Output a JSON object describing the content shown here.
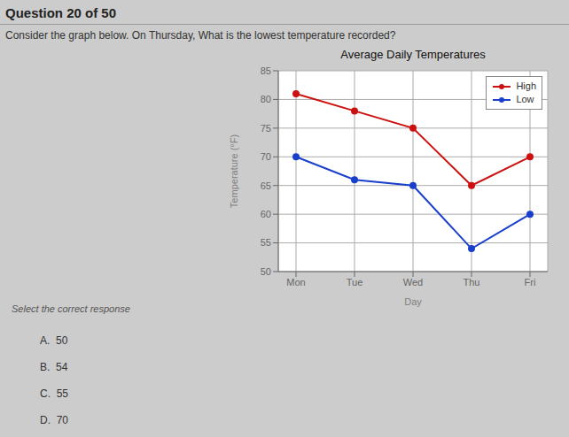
{
  "chart_data": {
    "type": "line",
    "title": "Average Daily Temperatures",
    "xlabel": "Day",
    "ylabel": "Temperature (°F)",
    "categories": [
      "Mon",
      "Tue",
      "Wed",
      "Thu",
      "Fri"
    ],
    "series": [
      {
        "name": "High",
        "color": "#cc1111",
        "values": [
          81,
          78,
          75,
          65,
          70
        ]
      },
      {
        "name": "Low",
        "color": "#1a3fcc",
        "values": [
          70,
          66,
          65,
          54,
          60
        ]
      }
    ],
    "marker": "circle",
    "ylim": [
      50,
      85
    ],
    "yticks": [
      50,
      55,
      60,
      65,
      70,
      75,
      80,
      85
    ],
    "grid": true,
    "legend": "upper right",
    "annotations": [
      "Question 20 of 50",
      "Consider the graph below. On Thursday, What is the lowest temperature recorded?",
      "Select the correct response",
      "A.  50",
      "B.  54",
      "C.  55",
      "D.  70"
    ]
  }
}
